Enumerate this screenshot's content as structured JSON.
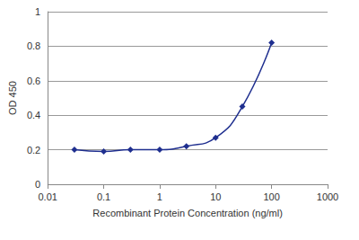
{
  "chart_data": {
    "type": "line",
    "x_label": "Recombinant Protein Concentration (ng/ml)",
    "y_label": "OD 450",
    "series": [
      {
        "name": "OD 450",
        "color": "#1f2f8f",
        "marker": "diamond",
        "line_style": "solid",
        "x": [
          0.03,
          0.1,
          0.3,
          1,
          3,
          10,
          30,
          100
        ],
        "values": [
          0.2,
          0.19,
          0.2,
          0.2,
          0.22,
          0.27,
          0.45,
          0.82
        ]
      }
    ],
    "log": "x",
    "xlim": [
      0.01,
      1000
    ],
    "xticks": [
      0.01,
      0.1,
      1,
      10,
      100,
      1000
    ],
    "ylim": [
      0,
      1
    ],
    "yticks": [
      0,
      0.2,
      0.4,
      0.6,
      0.8,
      1
    ],
    "grid": true
  }
}
